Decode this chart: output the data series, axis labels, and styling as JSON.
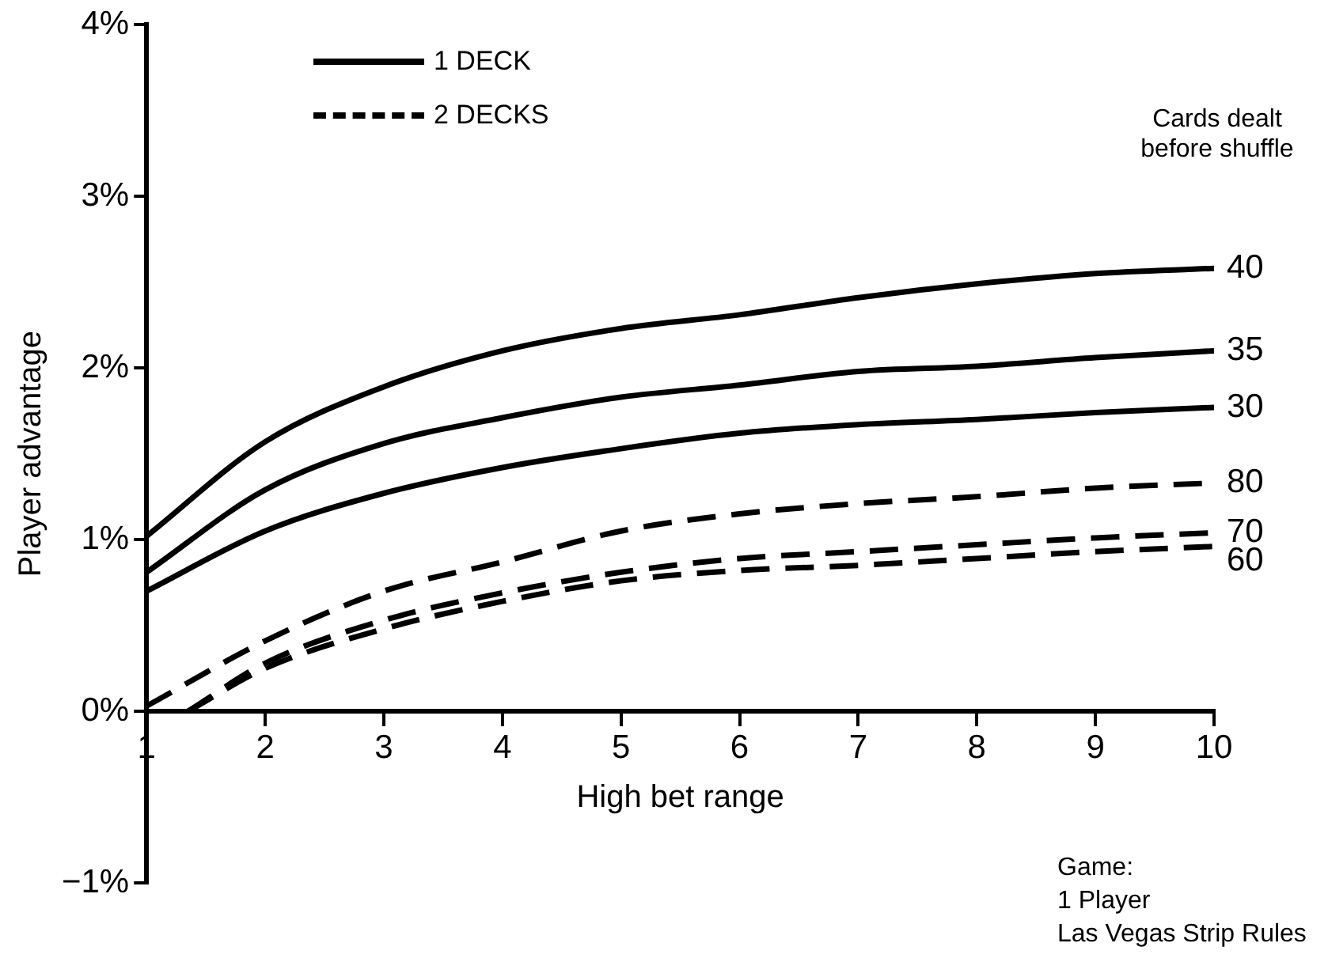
{
  "chart_data": {
    "type": "line",
    "xlabel": "High bet range",
    "ylabel": "Player advantage",
    "legend_title": "Cards dealt before shuffle",
    "xlim": [
      1,
      10
    ],
    "xticks": [
      1,
      2,
      3,
      4,
      5,
      6,
      7,
      8,
      9,
      10
    ],
    "ylim": [
      -1,
      4
    ],
    "yticks": [
      {
        "value": -1,
        "label": "−1%"
      },
      {
        "value": 0,
        "label": "0%"
      },
      {
        "value": 1,
        "label": "1%"
      },
      {
        "value": 2,
        "label": "2%"
      },
      {
        "value": 3,
        "label": "3%"
      },
      {
        "value": 4,
        "label": "4%"
      }
    ],
    "grid": false,
    "legend": false,
    "marker": "none",
    "annotations": [
      "1 DECK",
      "2 DECKS",
      "Game:\n1 Player\nLas Vegas Strip Rules"
    ],
    "series": [
      {
        "name": "40",
        "color": "#000000",
        "line_style": "solid",
        "x": [
          1,
          2,
          3,
          4,
          5,
          6,
          7,
          8,
          9,
          10
        ],
        "values": [
          1.02,
          1.57,
          1.89,
          2.1,
          2.23,
          2.31,
          2.41,
          2.49,
          2.55,
          2.58
        ]
      },
      {
        "name": "35",
        "color": "#000000",
        "line_style": "solid",
        "x": [
          1,
          2,
          3,
          4,
          5,
          6,
          7,
          8,
          9,
          10
        ],
        "values": [
          0.81,
          1.29,
          1.56,
          1.71,
          1.83,
          1.9,
          1.98,
          2.01,
          2.06,
          2.1
        ]
      },
      {
        "name": "30",
        "color": "#000000",
        "line_style": "solid",
        "x": [
          1,
          2,
          3,
          4,
          5,
          6,
          7,
          8,
          9,
          10
        ],
        "values": [
          0.7,
          1.05,
          1.27,
          1.42,
          1.53,
          1.62,
          1.67,
          1.7,
          1.74,
          1.77
        ]
      },
      {
        "name": "80",
        "color": "#000000",
        "line_style": "dashed",
        "x": [
          1,
          2,
          3,
          4,
          5,
          6,
          7,
          8,
          9,
          10
        ],
        "values": [
          0.03,
          0.41,
          0.7,
          0.87,
          1.05,
          1.15,
          1.21,
          1.25,
          1.3,
          1.33
        ]
      },
      {
        "name": "70",
        "color": "#000000",
        "line_style": "dashed",
        "x": [
          1.35,
          2,
          3,
          4,
          5,
          6,
          7,
          8,
          9,
          10
        ],
        "values": [
          0,
          0.28,
          0.53,
          0.69,
          0.81,
          0.89,
          0.93,
          0.97,
          1.01,
          1.04
        ]
      },
      {
        "name": "60",
        "color": "#000000",
        "line_style": "dashed",
        "x": [
          1.35,
          2,
          3,
          4,
          5,
          6,
          7,
          8,
          9,
          10
        ],
        "values": [
          0,
          0.25,
          0.48,
          0.64,
          0.76,
          0.82,
          0.85,
          0.89,
          0.93,
          0.96
        ]
      }
    ]
  }
}
